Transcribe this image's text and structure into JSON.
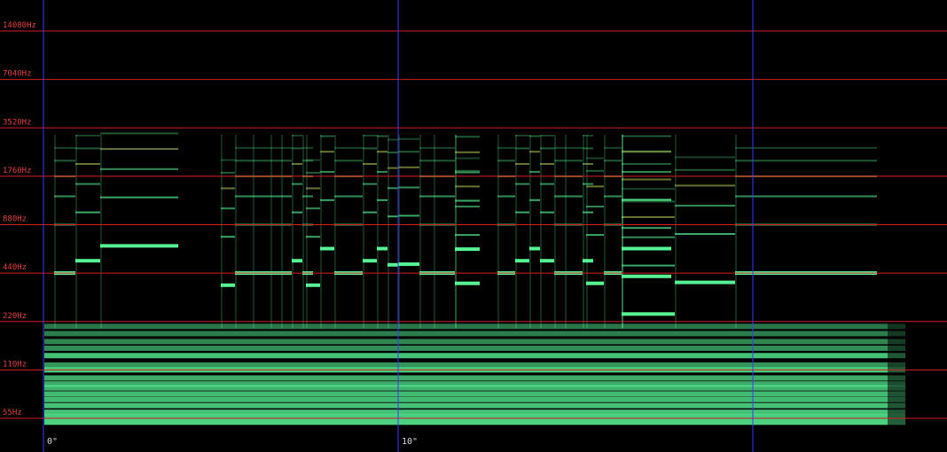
{
  "chart_data": {
    "type": "heatmap",
    "title": "",
    "xlabel": "",
    "ylabel": "",
    "scale": "log2 frequency",
    "colors": {
      "background": "#000000",
      "frequency_gridline": "#d02020",
      "time_gridline": "#3a3aff",
      "frequency_label": "#e04040",
      "time_label": "#d8d8d8",
      "energy": "#5cff9c",
      "energy_peak": "#e0ff70"
    },
    "y_ticks": [
      {
        "hz": 14080,
        "label": "14080Hz"
      },
      {
        "hz": 7040,
        "label": "7040Hz"
      },
      {
        "hz": 3520,
        "label": "3520Hz"
      },
      {
        "hz": 1760,
        "label": "1760Hz"
      },
      {
        "hz": 880,
        "label": "880Hz"
      },
      {
        "hz": 440,
        "label": "440Hz"
      },
      {
        "hz": 220,
        "label": "220Hz"
      },
      {
        "hz": 110,
        "label": "110Hz"
      },
      {
        "hz": 55,
        "label": "55Hz"
      }
    ],
    "x_ticks": [
      {
        "seconds": 0,
        "label": "0\""
      },
      {
        "seconds": 10,
        "label": "10\""
      },
      {
        "seconds": 20,
        "label": ""
      }
    ],
    "xlim": [
      0,
      24.3
    ],
    "ylim_hz": [
      40,
      20000
    ],
    "notes": [
      {
        "t0": 0.3,
        "t1": 0.9,
        "hz": 440
      },
      {
        "t0": 0.9,
        "t1": 1.6,
        "hz": 525
      },
      {
        "t0": 1.6,
        "t1": 3.8,
        "hz": 650
      },
      {
        "t0": 5.0,
        "t1": 5.4,
        "hz": 370
      },
      {
        "t0": 5.4,
        "t1": 5.9,
        "hz": 440
      },
      {
        "t0": 5.9,
        "t1": 6.4,
        "hz": 440
      },
      {
        "t0": 6.4,
        "t1": 6.7,
        "hz": 440
      },
      {
        "t0": 6.7,
        "t1": 7.0,
        "hz": 440
      },
      {
        "t0": 7.0,
        "t1": 7.3,
        "hz": 525
      },
      {
        "t0": 7.3,
        "t1": 7.6,
        "hz": 440
      },
      {
        "t0": 7.4,
        "t1": 7.8,
        "hz": 370
      },
      {
        "t0": 7.8,
        "t1": 8.2,
        "hz": 625
      },
      {
        "t0": 8.2,
        "t1": 9.0,
        "hz": 440
      },
      {
        "t0": 9.0,
        "t1": 9.4,
        "hz": 525
      },
      {
        "t0": 9.4,
        "t1": 9.7,
        "hz": 625
      },
      {
        "t0": 9.7,
        "t1": 10.0,
        "hz": 495
      },
      {
        "t0": 10.0,
        "t1": 10.6,
        "hz": 500
      },
      {
        "t0": 10.6,
        "t1": 11.0,
        "hz": 440
      },
      {
        "t0": 11.0,
        "t1": 11.6,
        "hz": 440
      },
      {
        "t0": 11.6,
        "t1": 12.3,
        "hz": 380
      },
      {
        "t0": 11.6,
        "t1": 12.3,
        "hz": 620
      },
      {
        "t0": 12.8,
        "t1": 13.3,
        "hz": 440
      },
      {
        "t0": 13.3,
        "t1": 13.7,
        "hz": 525
      },
      {
        "t0": 13.7,
        "t1": 14.0,
        "hz": 625
      },
      {
        "t0": 14.0,
        "t1": 14.4,
        "hz": 525
      },
      {
        "t0": 14.4,
        "t1": 14.7,
        "hz": 440
      },
      {
        "t0": 14.7,
        "t1": 15.2,
        "hz": 440
      },
      {
        "t0": 15.2,
        "t1": 15.5,
        "hz": 525
      },
      {
        "t0": 15.3,
        "t1": 15.8,
        "hz": 380
      },
      {
        "t0": 15.8,
        "t1": 16.3,
        "hz": 440
      },
      {
        "t0": 16.3,
        "t1": 17.7,
        "hz": 420
      },
      {
        "t0": 16.3,
        "t1": 17.7,
        "hz": 625
      },
      {
        "t0": 16.3,
        "t1": 17.8,
        "hz": 245
      },
      {
        "t0": 17.8,
        "t1": 19.5,
        "hz": 385
      },
      {
        "t0": 19.5,
        "t1": 23.5,
        "hz": 440
      }
    ],
    "noise_bands_hz": [
      {
        "hz": 52,
        "strength": 0.95
      },
      {
        "hz": 56,
        "strength": 0.9
      },
      {
        "hz": 60,
        "strength": 0.85
      },
      {
        "hz": 66,
        "strength": 0.85
      },
      {
        "hz": 72,
        "strength": 0.8
      },
      {
        "hz": 78,
        "strength": 0.8
      },
      {
        "hz": 85,
        "strength": 0.75
      },
      {
        "hz": 90,
        "strength": 0.7
      },
      {
        "hz": 98,
        "strength": 0.7
      },
      {
        "hz": 110,
        "strength": 0.9
      },
      {
        "hz": 118,
        "strength": 0.55
      },
      {
        "hz": 135,
        "strength": 0.85
      },
      {
        "hz": 150,
        "strength": 0.5
      },
      {
        "hz": 165,
        "strength": 0.45
      },
      {
        "hz": 185,
        "strength": 0.4
      },
      {
        "hz": 205,
        "strength": 0.35
      }
    ]
  }
}
